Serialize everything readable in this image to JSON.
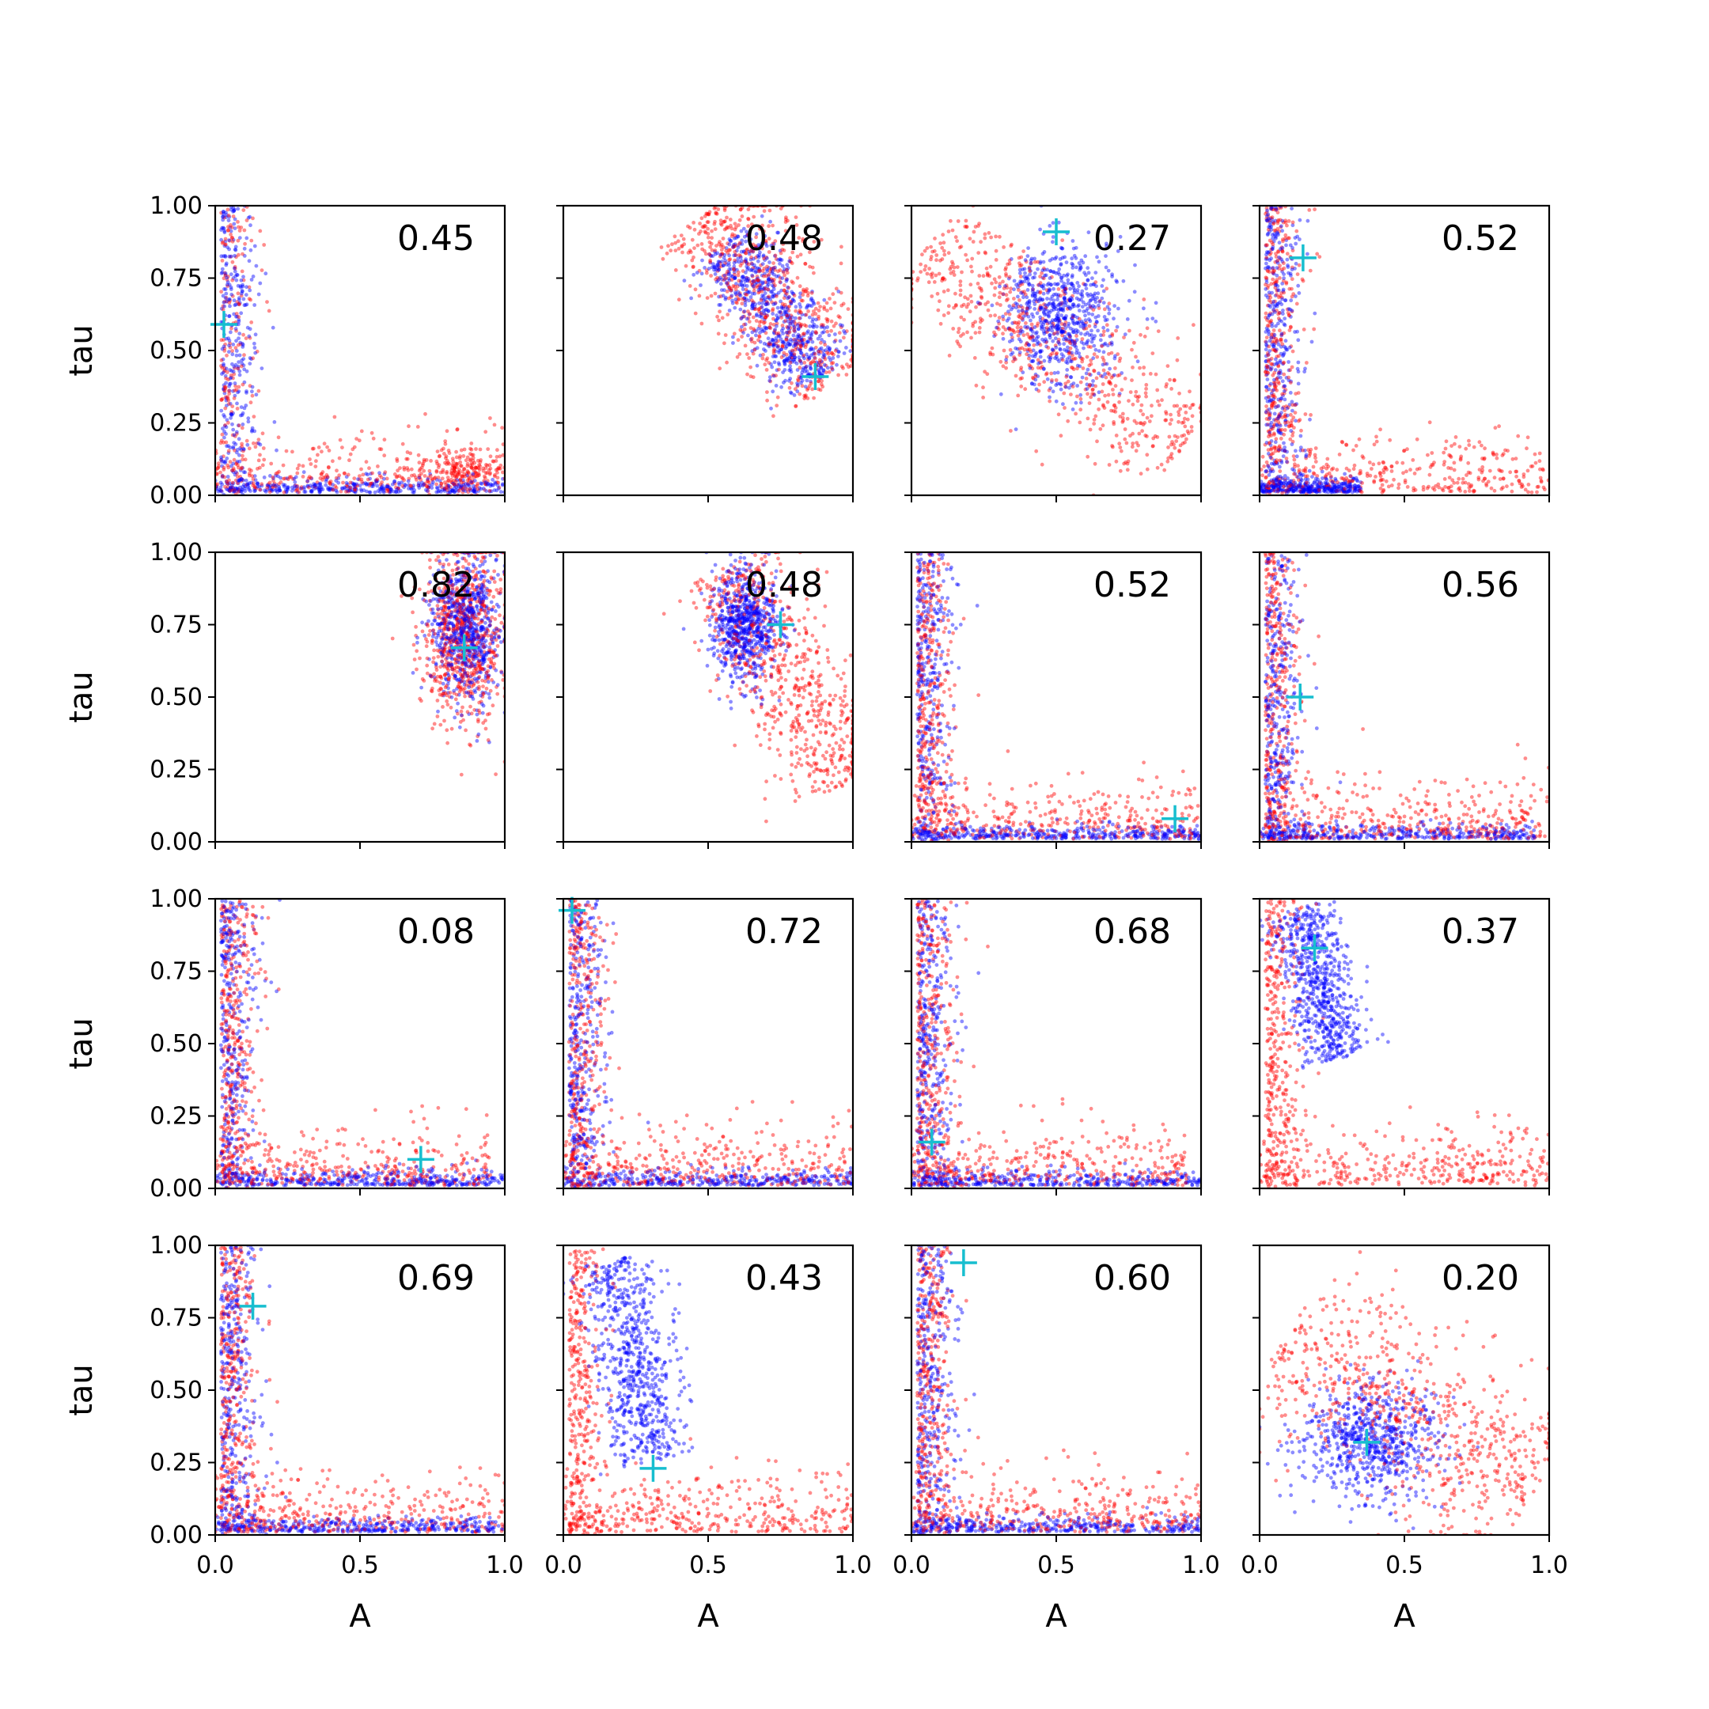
{
  "chart_data": {
    "type": "scatter",
    "layout": "4x4 grid of subplots, shared axes",
    "xlabel": "A",
    "ylabel": "tau",
    "xlim": [
      0.0,
      1.0
    ],
    "ylim": [
      0.0,
      1.0
    ],
    "xticks": [
      "0.0",
      "0.5",
      "1.0"
    ],
    "yticks": [
      "0.00",
      "0.25",
      "0.50",
      "0.75",
      "1.00"
    ],
    "grid": false,
    "colors": {
      "series_a": "#0000ff",
      "series_b": "#ff0000",
      "marker": "#17becf"
    },
    "series": [
      {
        "color": "#0000ff",
        "description": "blue posterior samples"
      },
      {
        "color": "#ff0000",
        "description": "red posterior samples"
      }
    ],
    "panels": [
      {
        "annotation": "0.45",
        "true_value": [
          0.03,
          0.59
        ],
        "blue": {
          "shape": "L",
          "xmax": 1.0
        },
        "red": {
          "shape": "L_lump",
          "lump": [
            0.85,
            0.08
          ]
        }
      },
      {
        "annotation": "0.48",
        "true_value": [
          0.87,
          0.41
        ],
        "blue": {
          "shape": "band",
          "from": [
            0.56,
            0.88
          ],
          "to": [
            0.88,
            0.4
          ],
          "width": 0.07
        },
        "red": {
          "shape": "band",
          "from": [
            0.5,
            0.98
          ],
          "to": [
            0.93,
            0.38
          ],
          "width": 0.11
        }
      },
      {
        "annotation": "0.27",
        "true_value": [
          0.5,
          0.91
        ],
        "blue": {
          "shape": "blob",
          "center": [
            0.52,
            0.62
          ],
          "spread": [
            0.1,
            0.12
          ]
        },
        "red": {
          "shape": "band",
          "from": [
            0.05,
            0.85
          ],
          "to": [
            0.95,
            0.18
          ],
          "width": 0.11
        }
      },
      {
        "annotation": "0.52",
        "true_value": [
          0.15,
          0.82
        ],
        "blue": {
          "shape": "L",
          "xmax": 0.35
        },
        "red": {
          "shape": "L_tail",
          "xmax": 1.0
        }
      },
      {
        "annotation": "0.82",
        "true_value": [
          0.86,
          0.67
        ],
        "blue": {
          "shape": "blob",
          "center": [
            0.87,
            0.74
          ],
          "spread": [
            0.06,
            0.13
          ]
        },
        "red": {
          "shape": "blob",
          "center": [
            0.86,
            0.72
          ],
          "spread": [
            0.07,
            0.16
          ]
        }
      },
      {
        "annotation": "0.48",
        "true_value": [
          0.75,
          0.75
        ],
        "blue": {
          "shape": "blob",
          "center": [
            0.63,
            0.75
          ],
          "spread": [
            0.06,
            0.1
          ]
        },
        "red": {
          "shape": "band",
          "from": [
            0.55,
            0.95
          ],
          "to": [
            0.98,
            0.2
          ],
          "width": 0.1
        }
      },
      {
        "annotation": "0.52",
        "true_value": [
          0.91,
          0.08
        ],
        "blue": {
          "shape": "L",
          "xmax": 1.0
        },
        "red": {
          "shape": "L_tail",
          "xmax": 1.0
        }
      },
      {
        "annotation": "0.56",
        "true_value": [
          0.14,
          0.5
        ],
        "blue": {
          "shape": "L",
          "xmax": 0.95
        },
        "red": {
          "shape": "L_tail",
          "xmax": 1.0
        }
      },
      {
        "annotation": "0.08",
        "true_value": [
          0.71,
          0.1
        ],
        "blue": {
          "shape": "L",
          "xmax": 1.0
        },
        "red": {
          "shape": "L_tail",
          "xmax": 0.95
        }
      },
      {
        "annotation": "0.72",
        "true_value": [
          0.03,
          0.96
        ],
        "blue": {
          "shape": "L",
          "xmax": 1.0
        },
        "red": {
          "shape": "L_tail",
          "xmax": 1.0
        }
      },
      {
        "annotation": "0.68",
        "true_value": [
          0.07,
          0.16
        ],
        "blue": {
          "shape": "L",
          "xmax": 1.0
        },
        "red": {
          "shape": "L_tail",
          "xmax": 0.95
        }
      },
      {
        "annotation": "0.37",
        "true_value": [
          0.19,
          0.83
        ],
        "blue": {
          "shape": "band",
          "from": [
            0.14,
            0.97
          ],
          "to": [
            0.28,
            0.45
          ],
          "width": 0.06
        },
        "red": {
          "shape": "L_tail",
          "xmax": 1.0
        }
      },
      {
        "annotation": "0.69",
        "true_value": [
          0.13,
          0.79
        ],
        "blue": {
          "shape": "L",
          "xmax": 1.0
        },
        "red": {
          "shape": "L_tail",
          "xmax": 1.0
        }
      },
      {
        "annotation": "0.43",
        "true_value": [
          0.31,
          0.23
        ],
        "blue": {
          "shape": "band",
          "from": [
            0.17,
            0.95
          ],
          "to": [
            0.32,
            0.25
          ],
          "width": 0.07
        },
        "red": {
          "shape": "L_tail",
          "xmax": 1.0
        }
      },
      {
        "annotation": "0.60",
        "true_value": [
          0.18,
          0.94
        ],
        "blue": {
          "shape": "L",
          "xmax": 1.0
        },
        "red": {
          "shape": "L_tail",
          "xmax": 1.0
        }
      },
      {
        "annotation": "0.20",
        "true_value": [
          0.37,
          0.32
        ],
        "blue": {
          "shape": "blob",
          "center": [
            0.38,
            0.32
          ],
          "spread": [
            0.12,
            0.1
          ]
        },
        "red": {
          "shape": "band",
          "from": [
            0.1,
            0.7
          ],
          "to": [
            0.95,
            0.15
          ],
          "width": 0.15
        }
      }
    ]
  }
}
